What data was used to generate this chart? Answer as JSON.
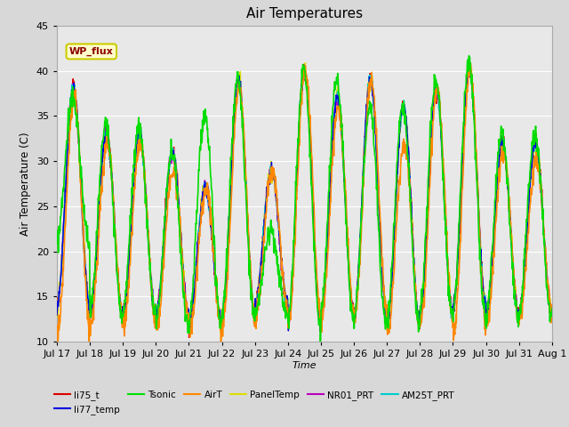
{
  "title": "Air Temperatures",
  "xlabel": "Time",
  "ylabel": "Air Temperature (C)",
  "ylim": [
    10,
    45
  ],
  "x_tick_labels": [
    "Jul 17",
    "Jul 18",
    "Jul 19",
    "Jul 20",
    "Jul 21",
    "Jul 22",
    "Jul 23",
    "Jul 24",
    "Jul 25",
    "Jul 26",
    "Jul 27",
    "Jul 28",
    "Jul 29",
    "Jul 30",
    "Jul 31",
    "Aug 1"
  ],
  "series_names": [
    "li75_t",
    "li77_temp",
    "Tsonic",
    "AirT",
    "PanelTemp",
    "NR01_PRT",
    "AM25T_PRT"
  ],
  "series_colors": [
    "#dd0000",
    "#0000dd",
    "#00dd00",
    "#ff8800",
    "#dddd00",
    "#bb00bb",
    "#00cccc"
  ],
  "series_linewidths": [
    1.0,
    1.0,
    1.2,
    1.2,
    1.2,
    1.0,
    1.0
  ],
  "annotation_text": "WP_flux",
  "fig_bg_color": "#d8d8d8",
  "plot_bg_color": "#e8e8e8",
  "grid_color": "#ffffff",
  "n_days": 15,
  "points_per_day": 96,
  "base_mins": [
    14,
    13,
    13,
    13,
    12,
    13,
    14,
    12,
    13,
    13,
    12,
    13,
    14,
    13,
    13
  ],
  "base_maxs": [
    38,
    33,
    33,
    31,
    27,
    39,
    29,
    40,
    37,
    39,
    36,
    38,
    40,
    32,
    32
  ],
  "tsonic_mins": [
    21,
    13,
    13,
    12,
    12,
    13,
    13,
    12,
    13,
    12,
    12,
    13,
    13,
    13,
    13
  ],
  "tsonic_maxs": [
    37,
    34,
    34,
    31,
    35,
    39,
    22,
    40,
    39,
    36,
    36,
    39,
    41,
    33,
    33
  ],
  "airt_mins": [
    11,
    12,
    12,
    12,
    11,
    12,
    13,
    12,
    13,
    13,
    11,
    12,
    11,
    12,
    13
  ],
  "airt_maxs": [
    37,
    32,
    32,
    29,
    27,
    38,
    29,
    40,
    36,
    39,
    32,
    38,
    40,
    31,
    30
  ]
}
